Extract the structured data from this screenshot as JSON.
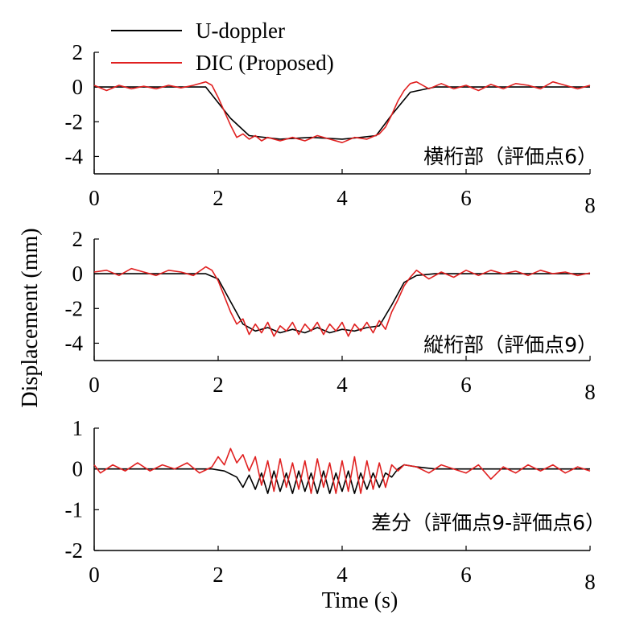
{
  "chart_data": {
    "type": "line",
    "ylabel": "Displacement (mm)",
    "xlabel": "Time (s)",
    "colors": {
      "u_doppler": "#000000",
      "dic": "#e02020"
    },
    "legend": {
      "position": "top-left",
      "entries": [
        {
          "name": "U-doppler",
          "color": "#000000"
        },
        {
          "name": "DIC (Proposed)",
          "color": "#e02020"
        }
      ]
    },
    "panels": [
      {
        "annotation": "横桁部（評価点6）",
        "xlim": [
          0,
          8
        ],
        "ylim": [
          -5,
          2
        ],
        "xticks": [
          0,
          2,
          4,
          6,
          8
        ],
        "yticks": [
          2,
          0,
          -2,
          -4
        ],
        "series": [
          {
            "name": "U-doppler",
            "color": "#000000",
            "x": [
              0,
              1.8,
              2.2,
              2.5,
              3.0,
              3.5,
              4.0,
              4.3,
              4.55,
              4.8,
              5.1,
              5.5,
              6,
              7,
              8
            ],
            "y": [
              0,
              0,
              -1.8,
              -2.8,
              -3.0,
              -2.9,
              -3.0,
              -2.9,
              -2.8,
              -1.6,
              -0.3,
              0,
              0,
              0,
              0
            ]
          },
          {
            "name": "DIC (Proposed)",
            "color": "#e02020",
            "x": [
              0,
              0.2,
              0.4,
              0.6,
              0.8,
              1.0,
              1.2,
              1.4,
              1.6,
              1.8,
              1.9,
              2.0,
              2.1,
              2.2,
              2.3,
              2.4,
              2.5,
              2.6,
              2.7,
              2.8,
              2.9,
              3.0,
              3.2,
              3.4,
              3.6,
              3.8,
              4.0,
              4.2,
              4.4,
              4.6,
              4.7,
              4.8,
              4.9,
              5.0,
              5.1,
              5.2,
              5.4,
              5.6,
              5.8,
              6.0,
              6.2,
              6.4,
              6.6,
              6.8,
              7.0,
              7.2,
              7.4,
              7.6,
              7.8,
              8.0
            ],
            "y": [
              0.1,
              -0.2,
              0.1,
              -0.1,
              0.05,
              -0.1,
              0.1,
              -0.05,
              0.1,
              0.3,
              0.1,
              -0.6,
              -1.4,
              -2.2,
              -2.9,
              -2.7,
              -3.0,
              -2.8,
              -3.1,
              -2.9,
              -3.0,
              -3.1,
              -2.9,
              -3.1,
              -2.8,
              -3.0,
              -3.2,
              -2.9,
              -3.0,
              -2.7,
              -2.3,
              -1.6,
              -0.8,
              -0.2,
              0.2,
              0.3,
              -0.1,
              0.2,
              -0.1,
              0.1,
              -0.2,
              0.15,
              -0.1,
              0.2,
              0.1,
              -0.1,
              0.3,
              0.1,
              -0.1,
              0.1
            ]
          }
        ]
      },
      {
        "annotation": "縦桁部（評価点9）",
        "xlim": [
          0,
          8
        ],
        "ylim": [
          -5,
          2
        ],
        "xticks": [
          0,
          2,
          4,
          6,
          8
        ],
        "yticks": [
          2,
          0,
          -2,
          -4
        ],
        "series": [
          {
            "name": "U-doppler",
            "color": "#000000",
            "x": [
              0,
              1.8,
              2.0,
              2.2,
              2.4,
              2.6,
              2.8,
              3.0,
              3.2,
              3.4,
              3.6,
              3.8,
              4.0,
              4.2,
              4.4,
              4.6,
              4.8,
              5.0,
              5.2,
              5.5,
              6,
              7,
              8
            ],
            "y": [
              0,
              0,
              -0.3,
              -1.6,
              -2.9,
              -3.3,
              -3.1,
              -3.4,
              -3.2,
              -3.4,
              -3.1,
              -3.4,
              -3.2,
              -3.3,
              -3.1,
              -3.0,
              -1.8,
              -0.5,
              -0.1,
              0,
              0,
              0,
              0
            ]
          },
          {
            "name": "DIC (Proposed)",
            "color": "#e02020",
            "x": [
              0,
              0.2,
              0.4,
              0.6,
              0.8,
              1.0,
              1.2,
              1.4,
              1.6,
              1.8,
              1.9,
              2.0,
              2.1,
              2.2,
              2.3,
              2.4,
              2.5,
              2.6,
              2.7,
              2.8,
              2.9,
              3.0,
              3.1,
              3.2,
              3.3,
              3.4,
              3.5,
              3.6,
              3.7,
              3.8,
              3.9,
              4.0,
              4.1,
              4.2,
              4.3,
              4.4,
              4.5,
              4.6,
              4.7,
              4.8,
              4.9,
              5.0,
              5.1,
              5.2,
              5.4,
              5.6,
              5.8,
              6.0,
              6.2,
              6.4,
              6.6,
              6.8,
              7.0,
              7.2,
              7.4,
              7.6,
              7.8,
              8.0
            ],
            "y": [
              0.1,
              0.2,
              -0.1,
              0.3,
              0.1,
              -0.1,
              0.2,
              0.1,
              -0.1,
              0.4,
              0.2,
              -0.4,
              -1.3,
              -2.2,
              -2.9,
              -2.6,
              -3.5,
              -2.9,
              -3.4,
              -2.8,
              -3.6,
              -3.0,
              -3.3,
              -2.8,
              -3.5,
              -2.9,
              -3.3,
              -2.8,
              -3.5,
              -2.9,
              -3.3,
              -2.8,
              -3.6,
              -2.9,
              -3.3,
              -2.8,
              -3.4,
              -2.7,
              -3.2,
              -2.2,
              -1.5,
              -0.7,
              -0.2,
              0.2,
              -0.3,
              0.1,
              -0.2,
              0.2,
              -0.1,
              0.2,
              0.0,
              0.15,
              -0.1,
              0.2,
              0.0,
              0.1,
              -0.1,
              0.05
            ]
          }
        ]
      },
      {
        "annotation": "差分（評価点9-評価点6）",
        "xlim": [
          0,
          8
        ],
        "ylim": [
          -2,
          1
        ],
        "xticks": [
          0,
          2,
          4,
          6,
          8
        ],
        "yticks": [
          1,
          0,
          -1,
          -2
        ],
        "series": [
          {
            "name": "U-doppler",
            "color": "#000000",
            "x": [
              0,
              1.9,
              2.1,
              2.3,
              2.4,
              2.5,
              2.6,
              2.7,
              2.8,
              2.9,
              3.0,
              3.1,
              3.2,
              3.3,
              3.4,
              3.5,
              3.6,
              3.7,
              3.8,
              3.9,
              4.0,
              4.1,
              4.2,
              4.3,
              4.4,
              4.5,
              4.6,
              4.7,
              4.8,
              4.9,
              5.0,
              5.2,
              5.5,
              6,
              7,
              8
            ],
            "y": [
              0,
              0,
              -0.05,
              -0.2,
              -0.45,
              -0.15,
              -0.5,
              -0.1,
              -0.6,
              -0.05,
              -0.55,
              -0.1,
              -0.6,
              -0.05,
              -0.55,
              -0.1,
              -0.6,
              -0.05,
              -0.6,
              -0.1,
              -0.55,
              -0.05,
              -0.6,
              -0.1,
              -0.5,
              -0.1,
              -0.45,
              -0.1,
              -0.2,
              0.0,
              0.1,
              0.05,
              0.0,
              0.0,
              0.0,
              0.0
            ]
          },
          {
            "name": "DIC (Proposed)",
            "color": "#e02020",
            "x": [
              0,
              0.1,
              0.3,
              0.5,
              0.7,
              0.9,
              1.1,
              1.3,
              1.5,
              1.7,
              1.9,
              2.0,
              2.1,
              2.2,
              2.3,
              2.4,
              2.5,
              2.6,
              2.7,
              2.8,
              2.9,
              3.0,
              3.1,
              3.2,
              3.3,
              3.4,
              3.5,
              3.6,
              3.7,
              3.8,
              3.9,
              4.0,
              4.1,
              4.2,
              4.3,
              4.4,
              4.5,
              4.6,
              4.7,
              4.8,
              4.9,
              5.0,
              5.2,
              5.4,
              5.6,
              5.8,
              6.0,
              6.2,
              6.4,
              6.6,
              6.8,
              7.0,
              7.2,
              7.4,
              7.6,
              7.8,
              8.0
            ],
            "y": [
              0.1,
              -0.1,
              0.1,
              -0.05,
              0.15,
              -0.05,
              0.1,
              0.0,
              0.15,
              -0.1,
              0.05,
              0.3,
              0.1,
              0.5,
              0.15,
              0.35,
              -0.05,
              0.3,
              -0.4,
              0.2,
              -0.55,
              0.25,
              -0.45,
              0.15,
              -0.5,
              0.2,
              -0.6,
              0.25,
              -0.45,
              0.15,
              -0.6,
              0.2,
              -0.55,
              0.3,
              -0.6,
              0.2,
              -0.5,
              0.15,
              -0.45,
              0.1,
              -0.05,
              0.1,
              0.05,
              -0.1,
              0.1,
              0.0,
              -0.1,
              0.1,
              -0.25,
              0.05,
              -0.1,
              0.1,
              -0.05,
              0.1,
              -0.1,
              0.05,
              -0.05
            ]
          }
        ]
      }
    ]
  }
}
